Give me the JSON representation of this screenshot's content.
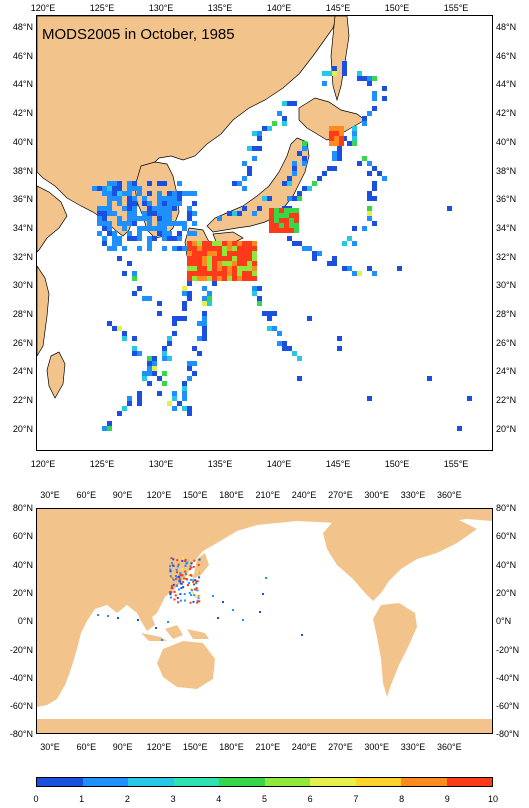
{
  "title": "MODS2005 in October, 1985",
  "colors": {
    "land": "#f2c48b",
    "ocean": "#ffffff",
    "scale": [
      "#1a4fe0",
      "#1e90ff",
      "#27c7e6",
      "#2fe2b4",
      "#36d84a",
      "#8fe83a",
      "#e6f04a",
      "#ffd42a",
      "#ff8a1e",
      "#ff3a1a"
    ]
  },
  "map1": {
    "lon_labels": [
      "120°E",
      "125°E",
      "130°E",
      "135°E",
      "140°E",
      "145°E",
      "150°E",
      "155°E"
    ],
    "lat_labels": [
      "48°N",
      "46°N",
      "44°N",
      "42°N",
      "40°N",
      "38°N",
      "36°N",
      "34°N",
      "32°N",
      "30°N",
      "28°N",
      "26°N",
      "24°N",
      "22°N",
      "20°N"
    ]
  },
  "map2": {
    "lon_labels": [
      "30°E",
      "60°E",
      "90°E",
      "120°E",
      "150°E",
      "180°E",
      "210°E",
      "240°E",
      "270°E",
      "300°E",
      "330°E",
      "360°E"
    ],
    "lat_labels": [
      "80°N",
      "60°N",
      "40°N",
      "20°N",
      "0°N",
      "-20°N",
      "-40°N",
      "-60°N",
      "-80°N"
    ]
  },
  "colorbar": {
    "labels": [
      "0",
      "1",
      "2",
      "3",
      "4",
      "5",
      "6",
      "7",
      "8",
      "9",
      "10"
    ]
  }
}
